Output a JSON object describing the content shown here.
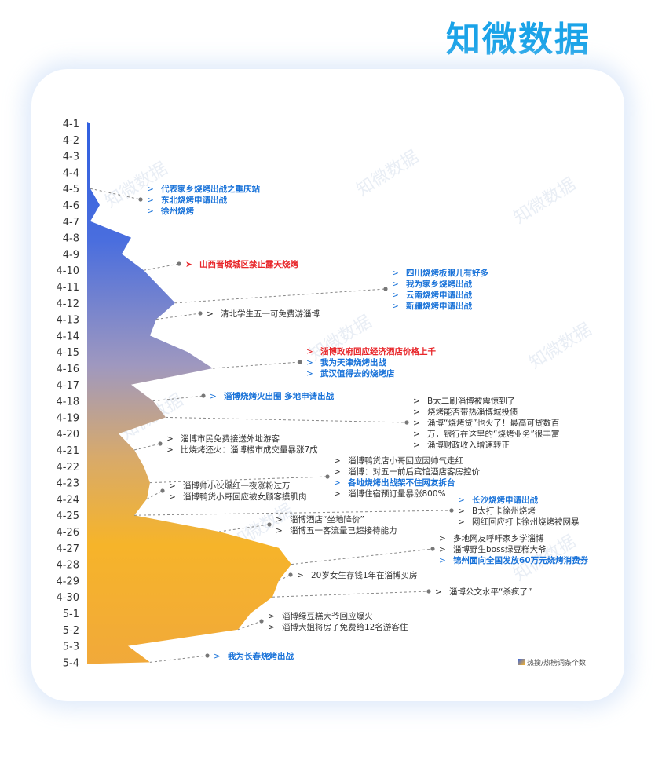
{
  "brand": {
    "logo_text": "知微数据"
  },
  "colors": {
    "accent_blue": "#1a73d9",
    "highlight_red": "#e8262a",
    "text_dark": "#333333",
    "leader_line": "#888888",
    "gradient_top": "#3e67d8",
    "gradient_mid": "#aa9ab2",
    "gradient_bottom": "#f7b22c"
  },
  "watermarks": [
    "知微数据",
    "知微数据",
    "知微数据",
    "知微数据",
    "知微数据",
    "知微数据",
    "知微数据",
    "知微数据"
  ],
  "legend": {
    "label": "热搜/热榜词条个数",
    "swatch": "gradient-square-icon"
  },
  "chart_data": {
    "type": "area",
    "orientation": "vertical-timeline",
    "title": "",
    "xlabel": "",
    "ylabel": "",
    "categories": [
      "4-1",
      "4-2",
      "4-3",
      "4-4",
      "4-5",
      "4-6",
      "4-7",
      "4-8",
      "4-9",
      "4-10",
      "4-11",
      "4-12",
      "4-13",
      "4-14",
      "4-15",
      "4-16",
      "4-17",
      "4-18",
      "4-19",
      "4-20",
      "4-21",
      "4-22",
      "4-23",
      "4-24",
      "4-25",
      "4-26",
      "4-27",
      "4-28",
      "4-29",
      "4-30",
      "5-1",
      "5-2",
      "5-3",
      "5-4"
    ],
    "values": [
      1,
      1,
      1,
      1,
      1,
      4,
      1,
      14,
      11,
      18,
      23,
      28,
      22,
      20,
      32,
      40,
      14,
      21,
      25,
      10,
      15,
      18,
      20,
      19,
      15,
      42,
      61,
      65,
      61,
      59,
      52,
      48,
      13,
      20
    ],
    "value_unit": "热搜/热榜词条个数",
    "annotations": [
      {
        "date": "4-5",
        "lines": [
          "代表家乡烧烤出战之重庆站",
          "东北烧烤申请出战",
          "徐州烧烤"
        ],
        "color": "blue"
      },
      {
        "date": "4-10",
        "lines": [
          "山西晋城城区禁止露天烧烤"
        ],
        "color": "red"
      },
      {
        "date": "4-12",
        "lines": [
          "四川烧烤板眼儿有好多",
          "我为家乡烧烤出战",
          "云南烧烤申请出战",
          "新疆烧烤申请出战"
        ],
        "color": "blue"
      },
      {
        "date": "4-13",
        "lines": [
          "清北学生五一可免费游淄博"
        ],
        "color": "dark"
      },
      {
        "date": "4-16",
        "lines": [
          "淄博政府回应经济酒店价格上千",
          "我为天津烧烤出战",
          "武汉值得去的烧烤店"
        ],
        "colors": [
          "red",
          "blue",
          "blue"
        ]
      },
      {
        "date": "4-18",
        "lines": [
          "淄博烧烤火出圈 多地申请出战"
        ],
        "color": "blue"
      },
      {
        "date": "4-19",
        "lines": [
          "B太二刷淄博被震惊到了",
          "烧烤能否带热淄博城投债",
          "淄博“烧烤贷”也火了！最高可贷数百",
          "万，银行在这里的“烧烤业务”很丰富",
          "淄博财政收入增速转正"
        ],
        "color": "dark"
      },
      {
        "date": "4-21",
        "lines": [
          "淄博市民免费接送外地游客",
          "比烧烤还火：淄博楼市成交量暴涨7成"
        ],
        "color": "dark"
      },
      {
        "date": "4-23",
        "lines": [
          "淄博鸭货店小哥回应因帅气走红",
          "淄博：对五一前后宾馆酒店客房控价",
          "各地烧烤出战架不住网友拆台",
          "淄博住宿预订量暴涨800%"
        ],
        "colors": [
          "dark",
          "dark",
          "blue",
          "dark"
        ]
      },
      {
        "date": "4-24",
        "lines": [
          "淄博帅小伙爆红一夜涨粉过万",
          "淄博鸭货小哥回应被女顾客摸肌肉"
        ],
        "color": "dark"
      },
      {
        "date": "4-25",
        "lines": [
          "长沙烧烤申请出战",
          "B太打卡徐州烧烤",
          "网红回应打卡徐州烧烤被网暴"
        ],
        "colors": [
          "blue",
          "dark",
          "dark"
        ]
      },
      {
        "date": "4-26",
        "lines": [
          "淄博酒店“坐地降价”",
          "淄博五一客流量已超接待能力"
        ],
        "color": "dark"
      },
      {
        "date": "4-28",
        "lines": [
          "多地网友呼吁家乡学淄博",
          "淄博野生boss绿豆糕大爷",
          "锦州面向全国发放60万元烧烤消费券"
        ],
        "colors": [
          "dark",
          "dark",
          "blue"
        ]
      },
      {
        "date": "4-29",
        "lines": [
          "20岁女生存钱1年在淄博买房"
        ],
        "color": "dark"
      },
      {
        "date": "4-30",
        "lines": [
          "淄博公文水平“杀疯了”"
        ],
        "color": "dark"
      },
      {
        "date": "5-2",
        "lines": [
          "淄博绿豆糕大爷回应爆火",
          "淄博大姐将房子免费给12名游客住"
        ],
        "color": "dark"
      },
      {
        "date": "5-4",
        "lines": [
          "我为长春烧烤出战"
        ],
        "color": "blue"
      }
    ]
  }
}
